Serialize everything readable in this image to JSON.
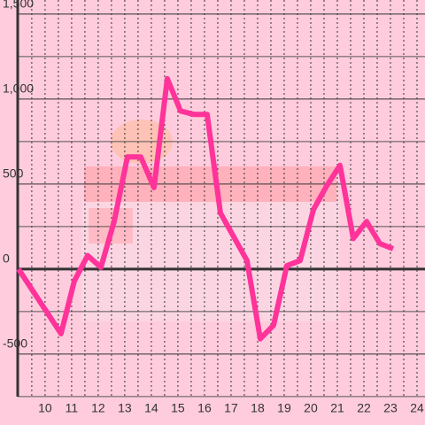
{
  "chart_data": {
    "type": "line",
    "x": [
      9.0,
      10.6,
      11.1,
      11.6,
      12.1,
      12.6,
      13.1,
      13.6,
      14.1,
      14.6,
      15.1,
      15.6,
      16.1,
      16.6,
      17.1,
      17.6,
      18.1,
      18.6,
      19.1,
      19.6,
      20.1,
      20.6,
      21.1,
      21.6,
      22.1,
      22.6,
      23.1
    ],
    "series": [
      {
        "color": "#ff3399",
        "values": [
          0,
          -380,
          -70,
          80,
          10,
          280,
          660,
          660,
          480,
          1120,
          930,
          910,
          910,
          330,
          190,
          50,
          -410,
          -330,
          20,
          50,
          350,
          490,
          610,
          180,
          280,
          150,
          120
        ]
      }
    ],
    "xlim": [
      8.97,
      24.3
    ],
    "ylim": [
      -917,
      1583
    ],
    "xticks": [
      10,
      11,
      12,
      13,
      14,
      15,
      16,
      17,
      18,
      19,
      20,
      21,
      22,
      23,
      24
    ],
    "yticks": [
      -500,
      0,
      500,
      {
        "value": 1000,
        "label": "1,000"
      },
      {
        "value": 1500,
        "label": "1,500"
      }
    ],
    "grid": true
  }
}
